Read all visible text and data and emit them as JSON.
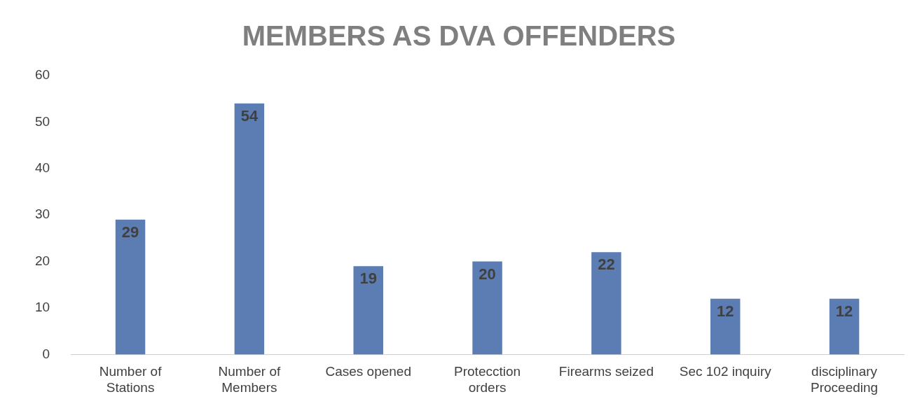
{
  "chart_data": {
    "type": "bar",
    "title": "MEMBERS AS DVA OFFENDERS",
    "categories": [
      "Number of Stations",
      "Number of Members",
      "Cases opened",
      "Protecction orders",
      "Firearms seized",
      "Sec 102 inquiry",
      "disciplinary Proceeding"
    ],
    "values": [
      29,
      54,
      19,
      20,
      22,
      12,
      12
    ],
    "color": "#5b7db3",
    "ylim": [
      0,
      60
    ],
    "yticks": [
      0,
      10,
      20,
      30,
      40,
      50,
      60
    ],
    "grid": false,
    "legend": false,
    "data_labels": true
  }
}
